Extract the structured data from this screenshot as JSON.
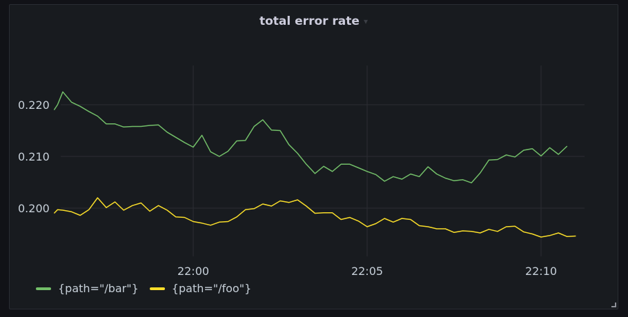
{
  "panel": {
    "title": "total error rate",
    "caret_icon": "chevron-down-icon"
  },
  "chart_data": {
    "type": "line",
    "title": "total error rate",
    "xlabel": "",
    "ylabel": "",
    "x_tick_labels": [
      "22:00",
      "22:05",
      "22:10"
    ],
    "y_tick_labels": [
      "0.200",
      "0.210",
      "0.220"
    ],
    "ylim": [
      0.189,
      0.2285
    ],
    "grid": true,
    "legend_position": "bottom-left",
    "x_units": "minutes from 21:56",
    "x": [
      0,
      0.1,
      0.5,
      1,
      1.5,
      2,
      2.5,
      3,
      3.5,
      4,
      4.5,
      5,
      5.5,
      6,
      6.5,
      7,
      7.5,
      8,
      8.5,
      9,
      9.5,
      10,
      10.5,
      11,
      11.5,
      12,
      12.5,
      13,
      13.5,
      14,
      14.5,
      15
    ],
    "series": [
      {
        "name": "{path=\"/bar\"}",
        "color": "#73bf69",
        "points": [
          [
            0.0,
            0.219
          ],
          [
            0.1,
            0.22
          ],
          [
            0.25,
            0.2225
          ],
          [
            0.5,
            0.2205
          ],
          [
            0.75,
            0.2197
          ],
          [
            1.0,
            0.2187
          ],
          [
            1.25,
            0.2178
          ],
          [
            1.5,
            0.2163
          ],
          [
            1.75,
            0.2163
          ],
          [
            2.0,
            0.2157
          ],
          [
            2.25,
            0.2158
          ],
          [
            2.5,
            0.2158
          ],
          [
            2.75,
            0.216
          ],
          [
            3.0,
            0.2161
          ],
          [
            3.25,
            0.2147
          ],
          [
            3.5,
            0.2137
          ],
          [
            3.75,
            0.2127
          ],
          [
            4.0,
            0.2118
          ],
          [
            4.25,
            0.2141
          ],
          [
            4.5,
            0.2109
          ],
          [
            4.75,
            0.21
          ],
          [
            5.0,
            0.211
          ],
          [
            5.25,
            0.213
          ],
          [
            5.5,
            0.2131
          ],
          [
            5.75,
            0.2158
          ],
          [
            6.0,
            0.2171
          ],
          [
            6.25,
            0.2151
          ],
          [
            6.5,
            0.215
          ],
          [
            6.75,
            0.2123
          ],
          [
            7.0,
            0.2106
          ],
          [
            7.25,
            0.2085
          ],
          [
            7.5,
            0.2067
          ],
          [
            7.75,
            0.2081
          ],
          [
            8.0,
            0.2071
          ],
          [
            8.25,
            0.2085
          ],
          [
            8.5,
            0.2085
          ],
          [
            8.75,
            0.2078
          ],
          [
            9.0,
            0.2071
          ],
          [
            9.25,
            0.2065
          ],
          [
            9.5,
            0.2052
          ],
          [
            9.75,
            0.2061
          ],
          [
            10.0,
            0.2056
          ],
          [
            10.25,
            0.2066
          ],
          [
            10.5,
            0.2061
          ],
          [
            10.75,
            0.208
          ],
          [
            11.0,
            0.2066
          ],
          [
            11.25,
            0.2058
          ],
          [
            11.5,
            0.2053
          ],
          [
            11.75,
            0.2055
          ],
          [
            12.0,
            0.2049
          ],
          [
            12.25,
            0.2068
          ],
          [
            12.5,
            0.2093
          ],
          [
            12.75,
            0.2094
          ],
          [
            13.0,
            0.2103
          ],
          [
            13.25,
            0.2099
          ],
          [
            13.5,
            0.2112
          ],
          [
            13.75,
            0.2115
          ],
          [
            14.0,
            0.2101
          ],
          [
            14.25,
            0.2117
          ],
          [
            14.5,
            0.2104
          ],
          [
            14.75,
            0.212
          ]
        ]
      },
      {
        "name": "{path=\"/foo\"}",
        "color": "#fade2a",
        "points": [
          [
            0.0,
            0.199
          ],
          [
            0.1,
            0.1997
          ],
          [
            0.25,
            0.1996
          ],
          [
            0.5,
            0.1993
          ],
          [
            0.75,
            0.1986
          ],
          [
            1.0,
            0.1997
          ],
          [
            1.25,
            0.202
          ],
          [
            1.5,
            0.2001
          ],
          [
            1.75,
            0.2012
          ],
          [
            2.0,
            0.1996
          ],
          [
            2.25,
            0.2005
          ],
          [
            2.5,
            0.201
          ],
          [
            2.75,
            0.1994
          ],
          [
            3.0,
            0.2005
          ],
          [
            3.25,
            0.1996
          ],
          [
            3.5,
            0.1983
          ],
          [
            3.75,
            0.1982
          ],
          [
            4.0,
            0.1974
          ],
          [
            4.25,
            0.1971
          ],
          [
            4.5,
            0.1967
          ],
          [
            4.75,
            0.1973
          ],
          [
            5.0,
            0.1974
          ],
          [
            5.25,
            0.1983
          ],
          [
            5.5,
            0.1997
          ],
          [
            5.75,
            0.1999
          ],
          [
            6.0,
            0.2008
          ],
          [
            6.25,
            0.2004
          ],
          [
            6.5,
            0.2014
          ],
          [
            6.75,
            0.2011
          ],
          [
            7.0,
            0.2016
          ],
          [
            7.25,
            0.2004
          ],
          [
            7.5,
            0.199
          ],
          [
            7.75,
            0.1991
          ],
          [
            8.0,
            0.1991
          ],
          [
            8.25,
            0.1978
          ],
          [
            8.5,
            0.1982
          ],
          [
            8.75,
            0.1975
          ],
          [
            9.0,
            0.1964
          ],
          [
            9.25,
            0.197
          ],
          [
            9.5,
            0.198
          ],
          [
            9.75,
            0.1973
          ],
          [
            10.0,
            0.198
          ],
          [
            10.25,
            0.1978
          ],
          [
            10.5,
            0.1966
          ],
          [
            10.75,
            0.1964
          ],
          [
            11.0,
            0.196
          ],
          [
            11.25,
            0.196
          ],
          [
            11.5,
            0.1953
          ],
          [
            11.75,
            0.1956
          ],
          [
            12.0,
            0.1955
          ],
          [
            12.25,
            0.1952
          ],
          [
            12.5,
            0.1959
          ],
          [
            12.75,
            0.1955
          ],
          [
            13.0,
            0.1964
          ],
          [
            13.25,
            0.1965
          ],
          [
            13.5,
            0.1954
          ],
          [
            13.75,
            0.195
          ],
          [
            14.0,
            0.1944
          ],
          [
            14.25,
            0.1947
          ],
          [
            14.5,
            0.1952
          ],
          [
            14.75,
            0.1945
          ],
          [
            15.0,
            0.1946
          ]
        ]
      }
    ]
  },
  "legend": {
    "items": [
      {
        "label": "{path=\"/bar\"}",
        "color": "#73bf69"
      },
      {
        "label": "{path=\"/foo\"}",
        "color": "#fade2a"
      }
    ]
  },
  "resize_icon": "resize-handle-icon"
}
